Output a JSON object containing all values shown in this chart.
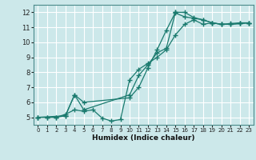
{
  "title": "",
  "xlabel": "Humidex (Indice chaleur)",
  "background_color": "#cce8ea",
  "grid_color": "#ffffff",
  "line_color": "#1a7a6e",
  "xlim": [
    -0.5,
    23.5
  ],
  "ylim": [
    4.5,
    12.5
  ],
  "xticks": [
    0,
    1,
    2,
    3,
    4,
    5,
    6,
    7,
    8,
    9,
    10,
    11,
    12,
    13,
    14,
    15,
    16,
    17,
    18,
    19,
    20,
    21,
    22,
    23
  ],
  "yticks": [
    5,
    6,
    7,
    8,
    9,
    10,
    11,
    12
  ],
  "series": [
    {
      "x": [
        0,
        1,
        2,
        3,
        4,
        5,
        10,
        11,
        12,
        13,
        14,
        15,
        15,
        16,
        17,
        18,
        19,
        20,
        21,
        22,
        23
      ],
      "y": [
        5,
        5,
        5,
        5.1,
        6.5,
        6.0,
        6.3,
        7.0,
        8.3,
        9.5,
        10.8,
        12.0,
        11.95,
        11.7,
        11.6,
        11.5,
        11.3,
        11.2,
        11.2,
        11.25,
        11.3
      ]
    },
    {
      "x": [
        0,
        1,
        2,
        3,
        4,
        5,
        6,
        7,
        8,
        9,
        10,
        11,
        12,
        13,
        14,
        15,
        16,
        17,
        18,
        19,
        20,
        21,
        22,
        23
      ],
      "y": [
        5,
        5,
        5,
        5.2,
        5.5,
        5.4,
        5.5,
        4.95,
        4.75,
        4.85,
        7.5,
        8.2,
        8.6,
        9.0,
        9.5,
        10.5,
        11.2,
        11.5,
        11.2,
        11.3,
        11.2,
        11.25,
        11.3,
        11.3
      ]
    },
    {
      "x": [
        0,
        3,
        4,
        5,
        10,
        11,
        12,
        13,
        14,
        15,
        16,
        17,
        18,
        19,
        20,
        21,
        22,
        23
      ],
      "y": [
        5,
        5.1,
        6.5,
        5.5,
        6.5,
        7.8,
        8.5,
        9.3,
        9.6,
        12.0,
        12.0,
        11.65,
        11.5,
        11.3,
        11.2,
        11.2,
        11.25,
        11.3
      ]
    }
  ]
}
